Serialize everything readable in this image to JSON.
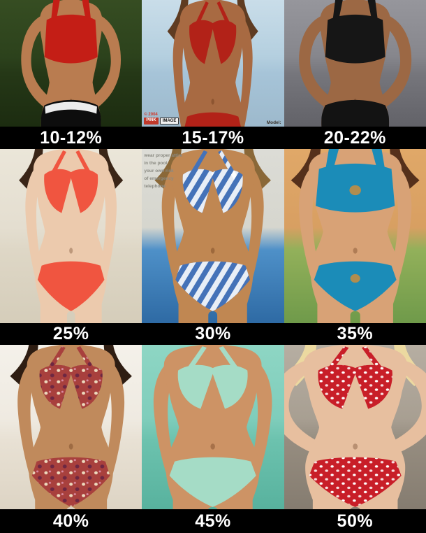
{
  "bands": {
    "background": "#000000",
    "text_color": "#ffffff"
  },
  "watermark": {
    "copyright": "© 2004",
    "chip_left": "PINK",
    "chip_right": "IMAGE",
    "model_credit": "Model:"
  },
  "pool_sign": {
    "lines": [
      "wear proper attire",
      "in the pool",
      "your own risk",
      "of emergency",
      "telephone"
    ]
  },
  "cells": [
    {
      "label": "10-12%",
      "description": "Extremely lean, heavily muscled woman in a red crop top and black pants with white waistband, hands on hips, dark green grass background",
      "skin": "#b97c50",
      "hair": "transparent",
      "top_color": "#c41e16",
      "bottom_color": "#0d0d0d",
      "accent": "#ececec",
      "pattern": "solid",
      "pose": "akimbo",
      "top_style": "band",
      "bottom_style": "pants",
      "body_scale": 0.78,
      "bg": [
        "#364d22",
        "#2c421c",
        "#253817",
        "#1c2c10"
      ]
    },
    {
      "label": "15-17%",
      "description": "Lean tanned fitness competitor in a red bikini against a pale blue sky",
      "skin": "#a86a42",
      "hair": "#5f3c22",
      "top_color": "#b22218",
      "bottom_color": "#b22218",
      "accent": "transparent",
      "pattern": "solid",
      "pose": "down",
      "top_style": "triangle",
      "bottom_style": "bikini",
      "body_scale": 0.82,
      "bg": [
        "#c9dde9",
        "#b4cfdf",
        "#a6c4d8",
        "#9db9cc"
      ]
    },
    {
      "label": "20-22%",
      "description": "Toned woman in a black sports top and black bottoms, hands on hips, gray studio backdrop",
      "skin": "#9c6844",
      "hair": "transparent",
      "top_color": "#161616",
      "bottom_color": "#131313",
      "accent": "transparent",
      "pattern": "solid",
      "pose": "akimbo",
      "top_style": "band",
      "bottom_style": "pants",
      "body_scale": 0.88,
      "bg": [
        "#96969c",
        "#86868c",
        "#76767c",
        "#626268"
      ]
    },
    {
      "label": "25%",
      "description": "Slim pale woman in a coral-red ruffled bikini, arms behind her back, cream paneled wall",
      "skin": "#eccaad",
      "hair": "#3a2517",
      "top_color": "#f05540",
      "bottom_color": "#f05540",
      "accent": "transparent",
      "pattern": "solid",
      "pose": "down",
      "top_style": "triangle",
      "bottom_style": "bikini",
      "body_scale": 0.94,
      "bg": [
        "#ebe6d9",
        "#e4ded0",
        "#ded7c6",
        "#d5cdba"
      ]
    },
    {
      "label": "30%",
      "description": "Tanned woman walking poolside in a blue-and-white zebra-print string bikini, white pool-rules sign above blue water",
      "skin": "#c08752",
      "hair": "#8a6838",
      "top_color": "#4472b8",
      "bottom_color": "#4472b8",
      "accent": "transparent",
      "pattern": "zebra-print",
      "pose": "down",
      "top_style": "triangle",
      "bottom_style": "bikini",
      "body_scale": 1.05,
      "bg": [
        "#dcdcd6",
        "#d6d6ce",
        "#4e90c8",
        "#2e6aa4"
      ]
    },
    {
      "label": "35%",
      "description": "Curvy woman in a teal bikini with jeweled brooches on top and bottom, tropical foliage background",
      "skin": "#d8a276",
      "hair": "#55301b",
      "top_color": "#1b8cb8",
      "bottom_color": "#1b8cb8",
      "accent": "#b08d4f",
      "pattern": "solid",
      "pose": "down",
      "top_style": "band",
      "bottom_style": "bikini",
      "body_scale": 1.16,
      "bg": [
        "#e0a868",
        "#d89f62",
        "#92b05a",
        "#6f9a4a"
      ]
    },
    {
      "label": "40%",
      "description": "Woman in a red, pink and white patterned halter bikini on a bright white beach",
      "skin": "#c08a5c",
      "hair": "#2e1d12",
      "top_color": "#a8403d",
      "bottom_color": "#a8403d",
      "accent": "transparent",
      "pattern": "floral",
      "pose": "down",
      "top_style": "triangle",
      "bottom_style": "bikini",
      "body_scale": 1.1,
      "bg": [
        "#f4f1ea",
        "#efeae1",
        "#e8e1d4",
        "#ddd4c4"
      ]
    },
    {
      "label": "45%",
      "description": "Woman standing in turquoise sea water wearing a mint-green patterned bikini, hands raised to her face",
      "skin": "#cd9365",
      "hair": "transparent",
      "top_color": "#a5dcc6",
      "bottom_color": "#a5dcc6",
      "accent": "transparent",
      "pattern": "solid",
      "pose": "down",
      "top_style": "triangle",
      "bottom_style": "bikini",
      "body_scale": 1.22,
      "bg": [
        "#8ed6c4",
        "#7fcdbb",
        "#6cc2ae",
        "#58b29e"
      ]
    },
    {
      "label": "50%",
      "description": "Blonde woman in a red polka-dot ruffled bikini with a hip tattoo, hand on hip, gray stone background",
      "skin": "#e7bf9f",
      "hair": "#ecd9a0",
      "top_color": "#c81e28",
      "bottom_color": "#c81e28",
      "accent": "transparent",
      "pattern": "polka-dot",
      "pose": "akimbo",
      "top_style": "triangle",
      "bottom_style": "bikini",
      "body_scale": 1.3,
      "bg": [
        "#b6aea2",
        "#a89f92",
        "#968d80",
        "#857c70"
      ]
    }
  ]
}
